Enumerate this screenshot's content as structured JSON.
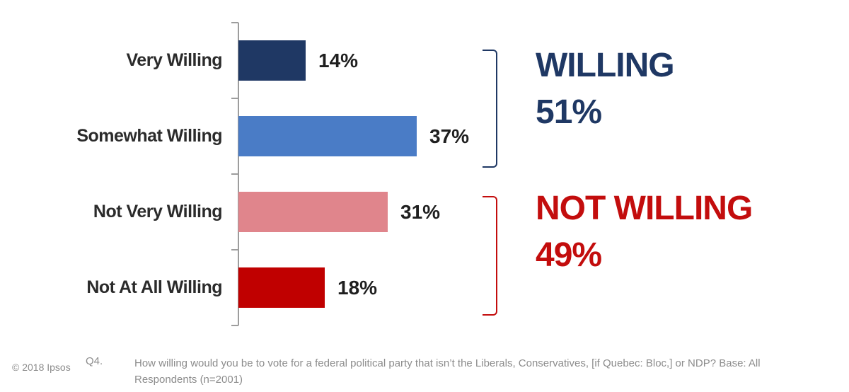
{
  "chart_data": {
    "type": "bar",
    "orientation": "horizontal",
    "grid": false,
    "legend": false,
    "title": "",
    "xlabel": "",
    "ylabel": "",
    "categories": [
      "Very Willing",
      "Somewhat Willing",
      "Not Very Willing",
      "Not At All Willing"
    ],
    "values": [
      14,
      37,
      31,
      18
    ],
    "value_labels": [
      "14%",
      "37%",
      "31%",
      "18%"
    ],
    "bar_colors": [
      "#1F3864",
      "#4A7CC6",
      "#E0858C",
      "#C00000"
    ],
    "axis_color": "#9d9d9d",
    "groups": [
      {
        "label": "WILLING",
        "value_label": "51%",
        "color": "#1F3864",
        "categories": [
          "Very Willing",
          "Somewhat Willing"
        ]
      },
      {
        "label": "NOT WILLING",
        "value_label": "49%",
        "color": "#C30D0D",
        "categories": [
          "Not Very Willing",
          "Not At All Willing"
        ]
      }
    ]
  },
  "footer": {
    "copyright": "© 2018 Ipsos",
    "question_number": "Q4.",
    "question_text": "How willing would you be to vote for a federal political party that isn’t the Liberals, Conservatives, [if Quebec: Bloc,] or NDP? Base: All Respondents (n=2001)"
  }
}
